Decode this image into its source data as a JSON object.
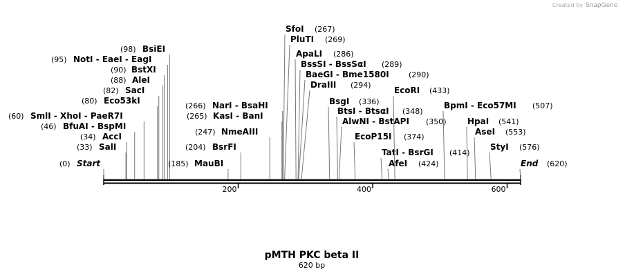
{
  "watermark": {
    "prefix": "Created by",
    "brand": "SnapGene"
  },
  "title": "pMTH PKC beta II",
  "subtitle": "620 bp",
  "ruler": {
    "start": 0,
    "length": 620,
    "ticks": [
      200,
      400,
      600
    ]
  },
  "sites": [
    {
      "names": "Start",
      "position": 0,
      "position_label": "(0)",
      "italic": true
    },
    {
      "names": "SalI",
      "position": 33,
      "position_label": "(33)"
    },
    {
      "names": "AccI",
      "position": 34,
      "position_label": "(34)"
    },
    {
      "names": "BfuAI  - BspMI",
      "position": 46,
      "position_label": "(46)"
    },
    {
      "names": "SmlI  - XhoI  - PaeR7I",
      "position": 60,
      "position_label": "(60)"
    },
    {
      "names": "Eco53kI",
      "position": 80,
      "position_label": "(80)"
    },
    {
      "names": "SacI",
      "position": 82,
      "position_label": "(82)"
    },
    {
      "names": "AleI",
      "position": 88,
      "position_label": "(88)"
    },
    {
      "names": "BstXI",
      "position": 90,
      "position_label": "(90)"
    },
    {
      "names": "NotI  - EaeI  - EagI",
      "position": 95,
      "position_label": "(95)"
    },
    {
      "names": "BsiEI",
      "position": 98,
      "position_label": "(98)"
    },
    {
      "names": "MauBI",
      "position": 185,
      "position_label": "(185)"
    },
    {
      "names": "BsrFI",
      "position": 204,
      "position_label": "(204)"
    },
    {
      "names": "NmeAIII",
      "position": 247,
      "position_label": "(247)"
    },
    {
      "names": "KasI  - BanI",
      "position": 265,
      "position_label": "(265)"
    },
    {
      "names": "NarI  - BsaHI",
      "position": 266,
      "position_label": "(266)"
    },
    {
      "names": "SfoI",
      "position": 267,
      "position_label": "(267)"
    },
    {
      "names": "PluTI",
      "position": 269,
      "position_label": "(269)"
    },
    {
      "names": "ApaLI",
      "position": 286,
      "position_label": "(286)"
    },
    {
      "names": "BssSI  - BssSαI",
      "position": 289,
      "position_label": "(289)"
    },
    {
      "names": "BaeGI  - Bme1580I",
      "position": 290,
      "position_label": "(290)"
    },
    {
      "names": "DraIII",
      "position": 294,
      "position_label": "(294)"
    },
    {
      "names": "BsgI",
      "position": 336,
      "position_label": "(336)"
    },
    {
      "names": "BtsI  - BtsαI",
      "position": 348,
      "position_label": "(348)"
    },
    {
      "names": "AlwNI  - BstAPI",
      "position": 350,
      "position_label": "(350)"
    },
    {
      "names": "EcoP15I",
      "position": 374,
      "position_label": "(374)"
    },
    {
      "names": "TatI  - BsrGI",
      "position": 414,
      "position_label": "(414)"
    },
    {
      "names": "AfeI",
      "position": 424,
      "position_label": "(424)"
    },
    {
      "names": "EcoRI",
      "position": 433,
      "position_label": "(433)"
    },
    {
      "names": "BpmI  - Eco57MI",
      "position": 507,
      "position_label": "(507)"
    },
    {
      "names": "HpaI",
      "position": 541,
      "position_label": "(541)"
    },
    {
      "names": "AseI",
      "position": 553,
      "position_label": "(553)"
    },
    {
      "names": "StyI",
      "position": 576,
      "position_label": "(576)"
    },
    {
      "names": "End",
      "position": 620,
      "position_label": "(620)",
      "italic": true
    }
  ]
}
